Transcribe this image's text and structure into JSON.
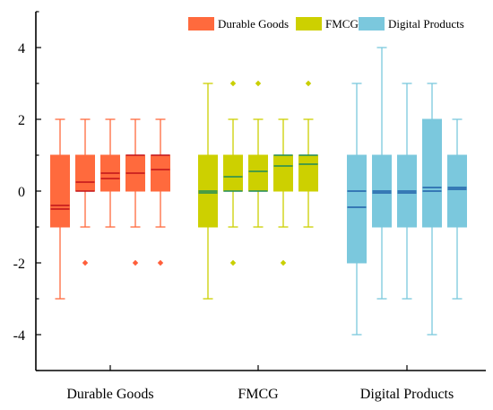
{
  "chart_data": {
    "type": "box",
    "categories": [
      "Durable Goods",
      "FMCG",
      "Digital Products"
    ],
    "ylim": [
      -5,
      5
    ],
    "yticks": [
      -4,
      -2,
      0,
      2,
      4
    ],
    "ytick_labels": [
      "-4",
      "-2",
      "0",
      "2",
      "4"
    ],
    "grid": false,
    "legend_position": "top-right",
    "groups": [
      {
        "name": "Durable Goods",
        "color": "#FF6A3D",
        "median_color": "#C0121A",
        "outlier_color": "#FF5E3A",
        "boxes": [
          {
            "q1": -1,
            "q3": 1,
            "median": -0.4,
            "mean": -0.5,
            "whisker_low": -3,
            "whisker_high": 2,
            "outliers": []
          },
          {
            "q1": 0,
            "q3": 1,
            "median": 0.25,
            "mean": 0.0,
            "whisker_low": -1,
            "whisker_high": 2,
            "outliers": [
              -2
            ]
          },
          {
            "q1": 0,
            "q3": 1,
            "median": 0.5,
            "mean": 0.35,
            "whisker_low": -1,
            "whisker_high": 2,
            "outliers": []
          },
          {
            "q1": 0,
            "q3": 1,
            "median": 0.5,
            "mean": 1.0,
            "whisker_low": -1,
            "whisker_high": 2,
            "outliers": [
              -2
            ]
          },
          {
            "q1": 0,
            "q3": 1,
            "median": 0.6,
            "mean": 1.0,
            "whisker_low": -1,
            "whisker_high": 2,
            "outliers": [
              -2
            ]
          }
        ]
      },
      {
        "name": "FMCG",
        "color": "#CDD000",
        "median_color": "#1E8A5A",
        "outlier_color": "#C9CF00",
        "boxes": [
          {
            "q1": -1,
            "q3": 1,
            "median": -0.05,
            "mean": 0.0,
            "whisker_low": -3,
            "whisker_high": 3,
            "outliers": []
          },
          {
            "q1": 0,
            "q3": 1,
            "median": 0.4,
            "mean": 0.0,
            "whisker_low": -1,
            "whisker_high": 2,
            "outliers": [
              3,
              -2
            ]
          },
          {
            "q1": 0,
            "q3": 1,
            "median": 0.55,
            "mean": 0.0,
            "whisker_low": -1,
            "whisker_high": 2,
            "outliers": [
              3
            ]
          },
          {
            "q1": 0,
            "q3": 1,
            "median": 0.7,
            "mean": 1.0,
            "whisker_low": -1,
            "whisker_high": 2,
            "outliers": [
              -2
            ]
          },
          {
            "q1": 0,
            "q3": 1,
            "median": 0.75,
            "mean": 1.0,
            "whisker_low": -1,
            "whisker_high": 2,
            "outliers": [
              3
            ]
          }
        ]
      },
      {
        "name": "Digital Products",
        "color": "#7BC8DD",
        "median_color": "#1F5FA8",
        "outlier_color": "#7BC8DD",
        "boxes": [
          {
            "q1": -2,
            "q3": 1,
            "median": -0.45,
            "mean": 0.0,
            "whisker_low": -4,
            "whisker_high": 3,
            "outliers": []
          },
          {
            "q1": -1,
            "q3": 1,
            "median": -0.05,
            "mean": 0.0,
            "whisker_low": -3,
            "whisker_high": 4,
            "outliers": []
          },
          {
            "q1": -1,
            "q3": 1,
            "median": -0.05,
            "mean": 0.0,
            "whisker_low": -3,
            "whisker_high": 3,
            "outliers": []
          },
          {
            "q1": -1,
            "q3": 2,
            "median": 0.1,
            "mean": 0.0,
            "whisker_low": -4,
            "whisker_high": 3,
            "outliers": []
          },
          {
            "q1": -1,
            "q3": 1,
            "median": 0.05,
            "mean": 0.1,
            "whisker_low": -3,
            "whisker_high": 2,
            "outliers": []
          }
        ]
      }
    ],
    "legend": [
      "Durable Goods",
      "FMCG",
      "Digital Products"
    ]
  }
}
